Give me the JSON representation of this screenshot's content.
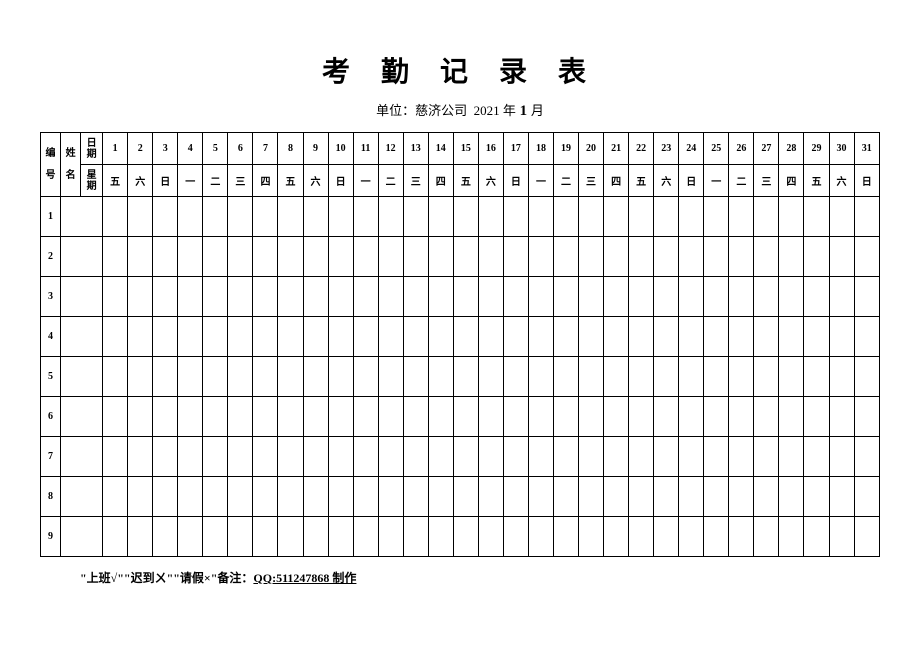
{
  "title": "考 勤 记 录 表",
  "subtitle_prefix": "单位：慈济公司  ",
  "subtitle_year": "2021",
  "subtitle_year_suffix": " 年",
  "subtitle_month": " 1 ",
  "subtitle_month_suffix": "月",
  "header": {
    "id_label_top": "编",
    "id_label_bottom": "号",
    "name_label_top": "姓",
    "name_label_bottom": "名",
    "date_label": "日期",
    "weekday_label": "星期"
  },
  "days": [
    "1",
    "2",
    "3",
    "4",
    "5",
    "6",
    "7",
    "8",
    "9",
    "10",
    "11",
    "12",
    "13",
    "14",
    "15",
    "16",
    "17",
    "18",
    "19",
    "20",
    "21",
    "22",
    "23",
    "24",
    "25",
    "26",
    "27",
    "28",
    "29",
    "30",
    "31"
  ],
  "weekdays": [
    "五",
    "六",
    "日",
    "一",
    "二",
    "三",
    "四",
    "五",
    "六",
    "日",
    "一",
    "二",
    "三",
    "四",
    "五",
    "六",
    "日",
    "一",
    "二",
    "三",
    "四",
    "五",
    "六",
    "日",
    "一",
    "二",
    "三",
    "四",
    "五",
    "六",
    "日"
  ],
  "row_numbers": [
    "1",
    "2",
    "3",
    "4",
    "5",
    "6",
    "7",
    "8",
    "9"
  ],
  "footer_text": "\"上班√\"\"迟到ㄨ\"\"请假×\"备注：",
  "footer_qq": "QQ:511247868 制作",
  "colors": {
    "background": "#ffffff",
    "border": "#000000",
    "text": "#000000"
  },
  "fonts": {
    "title_size": 28,
    "subtitle_size": 13,
    "cell_size": 10,
    "footer_size": 12
  }
}
